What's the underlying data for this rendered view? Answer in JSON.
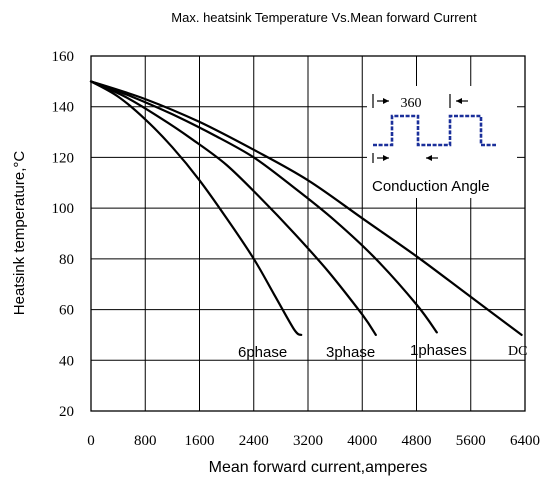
{
  "chart_data": {
    "type": "line",
    "title": "Max. heatsink Temperature Vs.Mean forward Current",
    "xlabel": "Mean forward current,amperes",
    "ylabel": "Heatsink temperature,°C",
    "xlim": [
      0,
      6400
    ],
    "ylim": [
      20,
      160
    ],
    "xticks": [
      0,
      800,
      1600,
      2400,
      3200,
      4000,
      4800,
      5600,
      6400
    ],
    "yticks": [
      20,
      40,
      60,
      80,
      100,
      120,
      140,
      160
    ],
    "grid": true,
    "series": [
      {
        "name": "6phase",
        "x": [
          0,
          400,
          800,
          1200,
          1600,
          2000,
          2400,
          2700,
          3000,
          3100
        ],
        "y": [
          150,
          144,
          135,
          124,
          111,
          96,
          80,
          66,
          52,
          50
        ]
      },
      {
        "name": "3phase",
        "x": [
          0,
          500,
          1000,
          1500,
          2000,
          2500,
          3000,
          3500,
          4000,
          4200
        ],
        "y": [
          150,
          144,
          136,
          127,
          117,
          104,
          90,
          75,
          58,
          50
        ]
      },
      {
        "name": "1phases",
        "x": [
          0,
          600,
          1200,
          1800,
          2400,
          3000,
          3600,
          4200,
          4800,
          5100
        ],
        "y": [
          150,
          144,
          137,
          129,
          120,
          108,
          95,
          80,
          62,
          51
        ]
      },
      {
        "name": "DC",
        "x": [
          0,
          800,
          1600,
          2400,
          3200,
          4000,
          4800,
          5600,
          6350
        ],
        "y": [
          150,
          143,
          134,
          123,
          111,
          96,
          81,
          65,
          50
        ]
      }
    ],
    "inset": {
      "period_label": "360",
      "caption": "Conduction Angle"
    }
  }
}
